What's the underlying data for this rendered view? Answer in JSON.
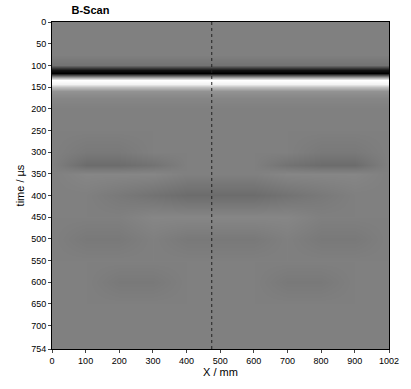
{
  "chart_data": {
    "type": "heatmap",
    "title": "B-Scan",
    "x_label": "X / mm",
    "y_label": "time / µs",
    "x": [
      0,
      100,
      200,
      300,
      400,
      500,
      600,
      700,
      800,
      900,
      1000
    ],
    "y": [
      0,
      25,
      50,
      75,
      100,
      110,
      118,
      126,
      134,
      142,
      150,
      160,
      175,
      200,
      250,
      300,
      330,
      350,
      400,
      450,
      500,
      550,
      600,
      650,
      700,
      754
    ],
    "z": [
      [
        0,
        0,
        0,
        0,
        0,
        0,
        0,
        0,
        0,
        0,
        0
      ],
      [
        0,
        0,
        0,
        0,
        0,
        0,
        0,
        0,
        0,
        0,
        0
      ],
      [
        0,
        0,
        0,
        0,
        0,
        0,
        0,
        0,
        0,
        0,
        0
      ],
      [
        0,
        0,
        0,
        0,
        0,
        0,
        0,
        0,
        0,
        0,
        0
      ],
      [
        -0.1,
        -0.1,
        -0.1,
        -0.1,
        -0.1,
        -0.1,
        -0.1,
        -0.1,
        -0.1,
        -0.1,
        -0.1
      ],
      [
        -0.85,
        -0.85,
        -0.85,
        -0.85,
        -0.85,
        -0.85,
        -0.85,
        -0.85,
        -0.85,
        -0.85,
        -0.85
      ],
      [
        -1,
        -1,
        -1,
        -1,
        -1,
        -1,
        -1,
        -1,
        -1,
        -1,
        -1
      ],
      [
        0.2,
        0.2,
        0.2,
        0.2,
        0.2,
        0.2,
        0.2,
        0.2,
        0.2,
        0.2,
        0.2
      ],
      [
        1,
        1,
        1,
        1,
        1,
        1,
        1,
        1,
        1,
        1,
        1
      ],
      [
        0.9,
        0.9,
        0.9,
        0.9,
        0.9,
        0.9,
        0.9,
        0.9,
        0.9,
        0.9,
        0.9
      ],
      [
        0.5,
        0.5,
        0.5,
        0.5,
        0.5,
        0.5,
        0.5,
        0.5,
        0.5,
        0.5,
        0.5
      ],
      [
        0.15,
        0.15,
        0.15,
        0.15,
        0.15,
        0.15,
        0.15,
        0.15,
        0.15,
        0.15,
        0.15
      ],
      [
        0.05,
        0.05,
        0.05,
        0.05,
        0.05,
        0.05,
        0.05,
        0.05,
        0.05,
        0.05,
        0.05
      ],
      [
        0,
        0,
        0,
        0,
        0,
        0,
        0,
        0,
        0,
        0,
        0
      ],
      [
        0,
        0,
        0,
        0,
        0,
        0,
        0,
        0,
        0,
        0,
        0
      ],
      [
        0,
        -0.05,
        -0.05,
        0,
        0,
        0,
        0,
        0,
        -0.05,
        -0.05,
        0
      ],
      [
        0,
        -0.15,
        -0.15,
        -0.1,
        0,
        0,
        0,
        -0.1,
        -0.15,
        -0.15,
        0
      ],
      [
        0,
        0.05,
        0.05,
        0.05,
        0,
        0,
        0,
        0.05,
        0.05,
        0.05,
        0
      ],
      [
        0,
        0,
        -0.05,
        -0.1,
        -0.15,
        -0.15,
        -0.15,
        -0.1,
        -0.05,
        0,
        0
      ],
      [
        0,
        0,
        0,
        0.05,
        0.05,
        0.05,
        0.05,
        0.05,
        0,
        0,
        0
      ],
      [
        0,
        -0.05,
        -0.05,
        0,
        -0.05,
        -0.05,
        -0.05,
        0,
        -0.05,
        -0.05,
        0
      ],
      [
        0,
        0,
        0,
        0,
        0,
        0,
        0,
        0,
        0,
        0,
        0
      ],
      [
        0,
        0,
        -0.05,
        -0.05,
        0,
        0,
        0,
        -0.05,
        -0.05,
        0,
        0
      ],
      [
        0,
        0,
        0,
        0,
        0,
        0,
        0,
        0,
        0,
        0,
        0
      ],
      [
        0,
        0,
        0,
        0,
        0,
        0,
        0,
        0,
        0,
        0,
        0
      ],
      [
        0,
        0,
        0,
        0,
        0,
        0,
        0,
        0,
        0,
        0,
        0
      ]
    ],
    "zlim": [
      -1,
      1
    ],
    "colors": [
      "#000000",
      "#ffffff"
    ],
    "cursor_x": 475,
    "line_style": "dot",
    "xlim": [
      0,
      1002
    ],
    "xticks": [
      0,
      100,
      200,
      300,
      400,
      500,
      600,
      700,
      800,
      900,
      1002
    ],
    "ylim": [
      0,
      754
    ],
    "yticks": [
      0,
      50,
      100,
      150,
      200,
      250,
      300,
      350,
      400,
      450,
      500,
      550,
      600,
      650,
      700,
      754
    ],
    "grid": false
  }
}
